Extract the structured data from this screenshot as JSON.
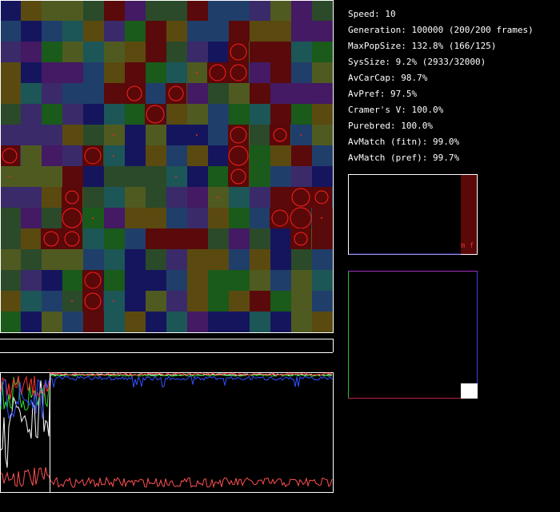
{
  "stats": [
    "Speed: 10",
    "Generation: 100000 (200/200 frames)",
    "MaxPopSize: 132.8% (166/125)",
    "SysSize: 9.2% (2933/32000)",
    "AvCarCap: 98.7%",
    "AvPref: 97.5%",
    "Cramer's V: 100.0%",
    "Purebred: 100.0%",
    "AvMatch (fitn): 99.0%",
    "AvMatch (pref): 99.7%"
  ],
  "panel_label": "m f"
}
